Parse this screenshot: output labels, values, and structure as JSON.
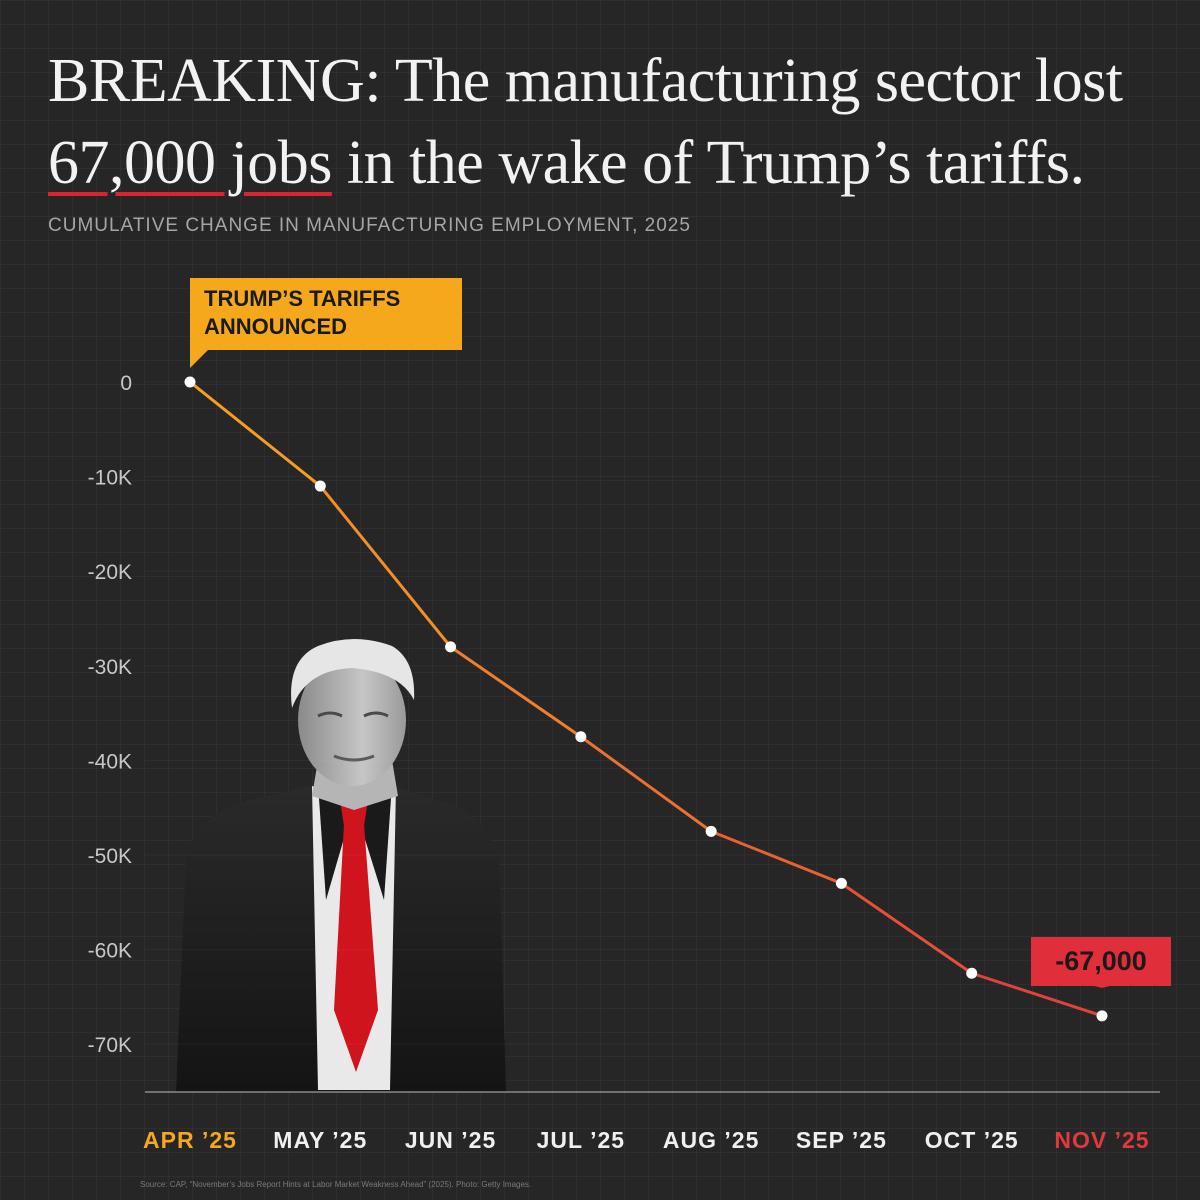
{
  "headline": {
    "lead": "BREAKING: The manufacturing sector lost ",
    "highlight": "67,000 jobs",
    "tail": " in the wake of Trump’s tariffs."
  },
  "subtitle": "CUMULATIVE CHANGE IN MANUFACTURING EMPLOYMENT, 2025",
  "source": "Source: CAP, “November’s Jobs Report Hints at Labor Market Weakness Ahead” (2025). Photo: Getty Images.",
  "colors": {
    "start": "#f5a623",
    "end": "#e03a3e",
    "callout_start_bg": "#f5a81c",
    "callout_end_bg": "#e02f3a",
    "background": "#262626"
  },
  "annotations": {
    "start_callout_lines": [
      "TRUMP’S TARIFFS",
      "ANNOUNCED"
    ],
    "end_callout": "-67,000"
  },
  "photo": {
    "icon": "person-portrait-icon"
  },
  "chart_data": {
    "type": "line",
    "title": "CUMULATIVE CHANGE IN MANUFACTURING EMPLOYMENT, 2025",
    "xlabel": "",
    "ylabel": "",
    "categories": [
      "APR ’25",
      "MAY ’25",
      "JUN ’25",
      "JUL ’25",
      "AUG ’25",
      "SEP ’25",
      "OCT ’25",
      "NOV ’25"
    ],
    "series": [
      {
        "values": [
          0,
          -11000,
          -28000,
          -37500,
          -47500,
          -53000,
          -62500,
          -67000
        ]
      }
    ],
    "yticks": [
      0,
      -10000,
      -20000,
      -30000,
      -40000,
      -50000,
      -60000,
      -70000
    ],
    "ytick_labels": [
      "0",
      "-10K",
      "-20K",
      "-30K",
      "-40K",
      "-50K",
      "-60K",
      "-70K"
    ],
    "ylim": [
      -72000,
      0
    ],
    "grid": true,
    "legend": "none"
  }
}
